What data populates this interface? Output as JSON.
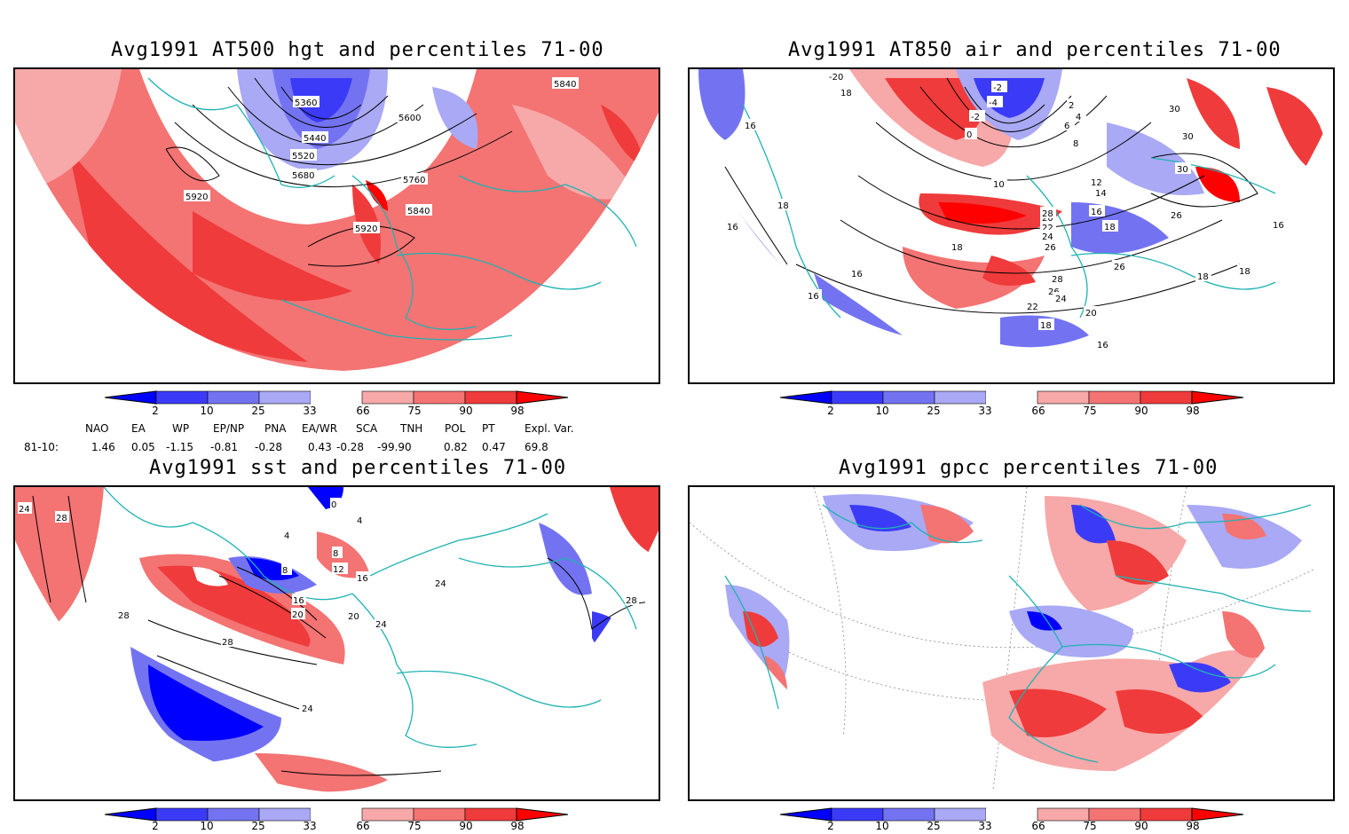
{
  "panels": {
    "p1": {
      "title": "Avg1991 AT500 hgt and percentiles 71-00",
      "labels": [
        "5360",
        "5440",
        "5520",
        "5600",
        "5680",
        "5760",
        "5840",
        "5920",
        "5920",
        "5840"
      ]
    },
    "p2": {
      "title": "Avg1991 AT850 air and percentiles 71-00",
      "labels": [
        "-20",
        "18",
        "16",
        "18",
        "16",
        "-2",
        "-4",
        "-2",
        "0",
        "2",
        "4",
        "6",
        "8",
        "10",
        "12",
        "14",
        "16",
        "18",
        "20",
        "22",
        "24",
        "26",
        "28",
        "30",
        "30",
        "30",
        "26",
        "16",
        "18",
        "16",
        "18",
        "18",
        "26",
        "28",
        "26",
        "24",
        "22",
        "20",
        "18",
        "16",
        "16"
      ]
    },
    "p3": {
      "title": "Avg1991 sst and percentiles 71-00",
      "labels": [
        "24",
        "28",
        "28",
        "8",
        "4",
        "0",
        "4",
        "8",
        "12",
        "16",
        "20",
        "16",
        "20",
        "24",
        "24",
        "28",
        "24",
        "28"
      ]
    },
    "p4": {
      "title": "Avg1991 gpcc percentiles 71-00"
    }
  },
  "colorbar": {
    "labels": [
      "2",
      "10",
      "25",
      "33",
      "66",
      "75",
      "90",
      "98"
    ],
    "colors": [
      "#0000ff",
      "#3b3bf7",
      "#7373f2",
      "#a9a9f5",
      "#ffffff",
      "#f7a8a8",
      "#f47373",
      "#ef3b3b",
      "#ff0000"
    ]
  },
  "indices": {
    "headers": [
      "NAO",
      "EA",
      "WP",
      "EP/NP",
      "PNA",
      "EA/WR",
      "SCA",
      "TNH",
      "POL",
      "PT",
      "Expl. Var."
    ],
    "row_label": "81-10:",
    "values": [
      "1.46",
      "0.05",
      "-1.15",
      "-0.81",
      "-0.28",
      "0.43",
      "-0.28",
      "-99.90",
      "0.82",
      "0.47",
      "69.8"
    ]
  },
  "colors": {
    "coast": "#20b2b2",
    "contour": "#000000",
    "frame": "#000000"
  }
}
